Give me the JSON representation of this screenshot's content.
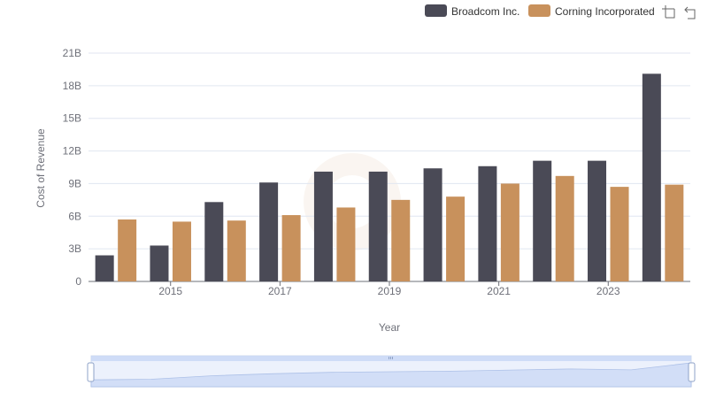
{
  "chart_data": {
    "type": "bar",
    "title": "",
    "xlabel": "Year",
    "ylabel": "Cost of Revenue",
    "x": [
      2014,
      2015,
      2016,
      2017,
      2018,
      2019,
      2020,
      2021,
      2022,
      2023,
      2024
    ],
    "x_tick_labels": [
      "2015",
      "2017",
      "2019",
      "2021",
      "2023"
    ],
    "x_tick_values": [
      2015,
      2017,
      2019,
      2021,
      2023
    ],
    "y_ticks": [
      0,
      3,
      6,
      9,
      12,
      15,
      18,
      21
    ],
    "y_tick_labels": [
      "0",
      "3B",
      "6B",
      "9B",
      "12B",
      "15B",
      "18B",
      "21B"
    ],
    "ylim": [
      0,
      21
    ],
    "y_unit": "B",
    "grid": true,
    "legend_position": "top-right",
    "series": [
      {
        "name": "Broadcom Inc.",
        "color": "#4a4a56",
        "values": [
          2.4,
          3.3,
          7.3,
          9.1,
          10.1,
          10.1,
          10.4,
          10.6,
          11.1,
          11.1,
          19.1
        ]
      },
      {
        "name": "Corning Incorporated",
        "color": "#c8915c",
        "values": [
          5.7,
          5.5,
          5.6,
          6.1,
          6.8,
          7.5,
          7.8,
          9.0,
          9.7,
          8.7,
          8.9
        ]
      }
    ]
  },
  "toolbar": {
    "zoom_icon": "zoom-icon",
    "restore_icon": "restore-icon"
  },
  "zoom_slider": {
    "start_percent": 0,
    "end_percent": 100
  }
}
